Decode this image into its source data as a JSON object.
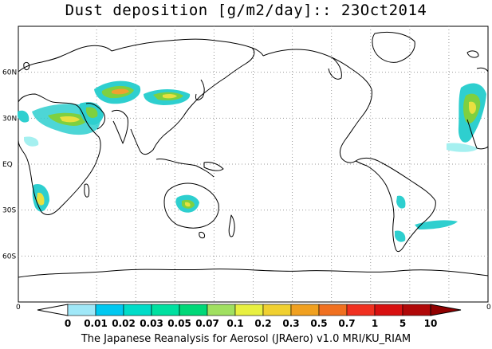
{
  "title": "Dust deposition [g/m2/day]:: 23Oct2014",
  "credit": "The Japanese Reanalysis for Aerosol (JRAero) v1.0 MRI/KU_RIAM",
  "map": {
    "lat_labels": [
      "60N",
      "30N",
      "EQ",
      "30S",
      "60S"
    ],
    "lat_values": [
      60,
      30,
      0,
      -30,
      -60
    ],
    "lon_gridlines_deg": [
      60,
      90,
      120,
      150,
      180,
      210,
      240,
      270,
      300,
      330
    ],
    "lat_range": [
      -90,
      90
    ],
    "lon_range": [
      0,
      360
    ],
    "colors": {
      "coastline": "#000000",
      "grid": "#9a9a9a",
      "dust_light": "#a5f0f0",
      "dust_mid": "#2ecfcf",
      "dust_teal": "#20c8a0",
      "dust_green": "#7ed040",
      "dust_yellow": "#e8e040",
      "dust_orange": "#f0a030"
    }
  },
  "colorbar": {
    "edge_left": "0",
    "edge_right": "0",
    "levels": [
      "0",
      "0.01",
      "0.02",
      "0.03",
      "0.05",
      "0.07",
      "0.1",
      "0.2",
      "0.3",
      "0.5",
      "0.7",
      "1",
      "5",
      "10"
    ],
    "colors": [
      "#ffffff",
      "#a0e8f8",
      "#00c8f0",
      "#00dcc8",
      "#00e0a0",
      "#00d878",
      "#a0e060",
      "#e8f040",
      "#f0d030",
      "#f0a020",
      "#f07020",
      "#f03020",
      "#d81010",
      "#b00808",
      "#900000"
    ]
  }
}
